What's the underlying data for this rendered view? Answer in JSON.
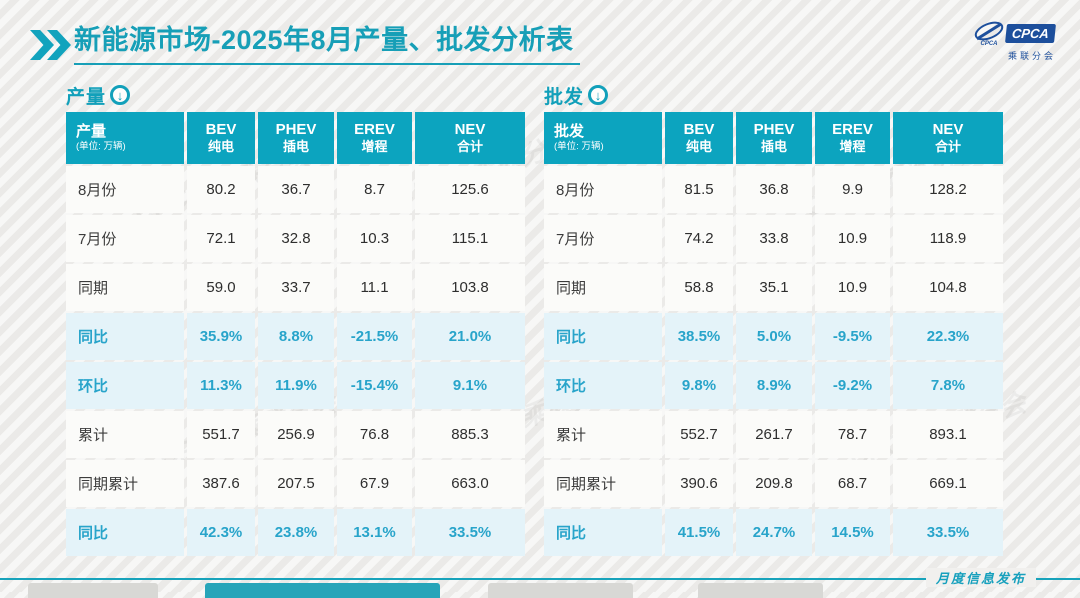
{
  "page": {
    "title_bold": "新能源市场",
    "title_rest": "-2025年8月产量、批发分析表",
    "footer_label": "月度信息发布",
    "watermark": "CPCA 乘联分会",
    "logo": {
      "name": "CPCA",
      "tiny": "CPCA",
      "sub": "乘联分会"
    }
  },
  "colors": {
    "teal_header": "#0ca4bf",
    "teal_title": "#179fb7",
    "highlight_row_bg": "#e4f3f9",
    "highlight_text": "#28a4ca",
    "logo_blue": "#1d4f9c"
  },
  "chart_data": [
    {
      "type": "table",
      "section_label": "产量",
      "corner_label": "产量",
      "unit": "(单位: 万辆)",
      "columns": [
        {
          "en": "BEV",
          "zh": "纯电"
        },
        {
          "en": "PHEV",
          "zh": "插电"
        },
        {
          "en": "EREV",
          "zh": "增程"
        },
        {
          "en": "NEV",
          "zh": "合计"
        }
      ],
      "rows": [
        {
          "label": "8月份",
          "values": [
            "80.2",
            "36.7",
            "8.7",
            "125.6"
          ],
          "highlight": false
        },
        {
          "label": "7月份",
          "values": [
            "72.1",
            "32.8",
            "10.3",
            "115.1"
          ],
          "highlight": false
        },
        {
          "label": "同期",
          "values": [
            "59.0",
            "33.7",
            "11.1",
            "103.8"
          ],
          "highlight": false
        },
        {
          "label": "同比",
          "values": [
            "35.9%",
            "8.8%",
            "-21.5%",
            "21.0%"
          ],
          "highlight": true
        },
        {
          "label": "环比",
          "values": [
            "11.3%",
            "11.9%",
            "-15.4%",
            "9.1%"
          ],
          "highlight": true
        },
        {
          "label": "累计",
          "values": [
            "551.7",
            "256.9",
            "76.8",
            "885.3"
          ],
          "highlight": false
        },
        {
          "label": "同期累计",
          "values": [
            "387.6",
            "207.5",
            "67.9",
            "663.0"
          ],
          "highlight": false
        },
        {
          "label": "同比",
          "values": [
            "42.3%",
            "23.8%",
            "13.1%",
            "33.5%"
          ],
          "highlight": true
        }
      ]
    },
    {
      "type": "table",
      "section_label": "批发",
      "corner_label": "批发",
      "unit": "(单位: 万辆)",
      "columns": [
        {
          "en": "BEV",
          "zh": "纯电"
        },
        {
          "en": "PHEV",
          "zh": "插电"
        },
        {
          "en": "EREV",
          "zh": "增程"
        },
        {
          "en": "NEV",
          "zh": "合计"
        }
      ],
      "rows": [
        {
          "label": "8月份",
          "values": [
            "81.5",
            "36.8",
            "9.9",
            "128.2"
          ],
          "highlight": false
        },
        {
          "label": "7月份",
          "values": [
            "74.2",
            "33.8",
            "10.9",
            "118.9"
          ],
          "highlight": false
        },
        {
          "label": "同期",
          "values": [
            "58.8",
            "35.1",
            "10.9",
            "104.8"
          ],
          "highlight": false
        },
        {
          "label": "同比",
          "values": [
            "38.5%",
            "5.0%",
            "-9.5%",
            "22.3%"
          ],
          "highlight": true
        },
        {
          "label": "环比",
          "values": [
            "9.8%",
            "8.9%",
            "-9.2%",
            "7.8%"
          ],
          "highlight": true
        },
        {
          "label": "累计",
          "values": [
            "552.7",
            "261.7",
            "78.7",
            "893.1"
          ],
          "highlight": false
        },
        {
          "label": "同期累计",
          "values": [
            "390.6",
            "209.8",
            "68.7",
            "669.1"
          ],
          "highlight": false
        },
        {
          "label": "同比",
          "values": [
            "41.5%",
            "24.7%",
            "14.5%",
            "33.5%"
          ],
          "highlight": true
        }
      ]
    }
  ],
  "footer_tabs": [
    {
      "active": false
    },
    {
      "active": true
    },
    {
      "active": false
    },
    {
      "active": false
    }
  ]
}
